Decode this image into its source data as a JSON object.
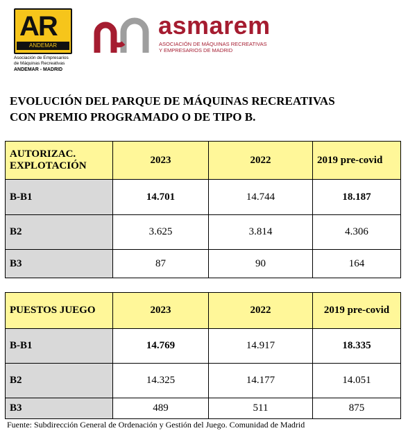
{
  "logos": {
    "andemar": {
      "mark": "AR",
      "band": "ANDEMAR",
      "caption_line1": "Asociación de Empresarios",
      "caption_line2": "de Máquinas Recreativas",
      "caption_line3": "ANDEMAR - MADRID"
    },
    "asmarem": {
      "name": "asmarem",
      "tagline_line1": "ASOCIACIÓN DE MÁQUINAS RECREATIVAS",
      "tagline_line2": "Y EMPRESARIOS DE MADRID",
      "colors": {
        "brand": "#a51c30",
        "gray": "#9e9e9e"
      }
    }
  },
  "title": {
    "line1": "EVOLUCIÓN DEL  PARQUE DE MÁQUINAS  RECREATIVAS",
    "line2": "CON PREMIO PROGRAMADO O DE TIPO B."
  },
  "table_autorizaciones": {
    "header": [
      "AUTORIZAC. EXPLOTACIÓN",
      "2023",
      "2022",
      "2019  pre-covid"
    ],
    "rows": [
      {
        "label": "B-B1",
        "values": [
          "14.701",
          "14.744",
          "18.187"
        ]
      },
      {
        "label": "B2",
        "values": [
          "3.625",
          "3.814",
          "4.306"
        ]
      },
      {
        "label": "B3",
        "values": [
          "87",
          "90",
          "164"
        ]
      }
    ]
  },
  "table_puestos": {
    "header": [
      "PUESTOS JUEGO",
      "2023",
      "2022",
      "2019 pre-covid"
    ],
    "rows": [
      {
        "label": "B-B1",
        "values": [
          "14.769",
          "14.917",
          "18.335"
        ]
      },
      {
        "label": "B2",
        "values": [
          "14.325",
          "14.177",
          "14.051"
        ]
      },
      {
        "label": "B3",
        "values": [
          "489",
          "511",
          "875"
        ]
      }
    ]
  },
  "source": "Fuente:  Subdirección General de Ordenación y Gestión del Juego. Comunidad de Madrid",
  "colors": {
    "header_yellow": "#fff799",
    "row_gray": "#d9d9d9",
    "andemar_yellow": "#f6c51b"
  }
}
